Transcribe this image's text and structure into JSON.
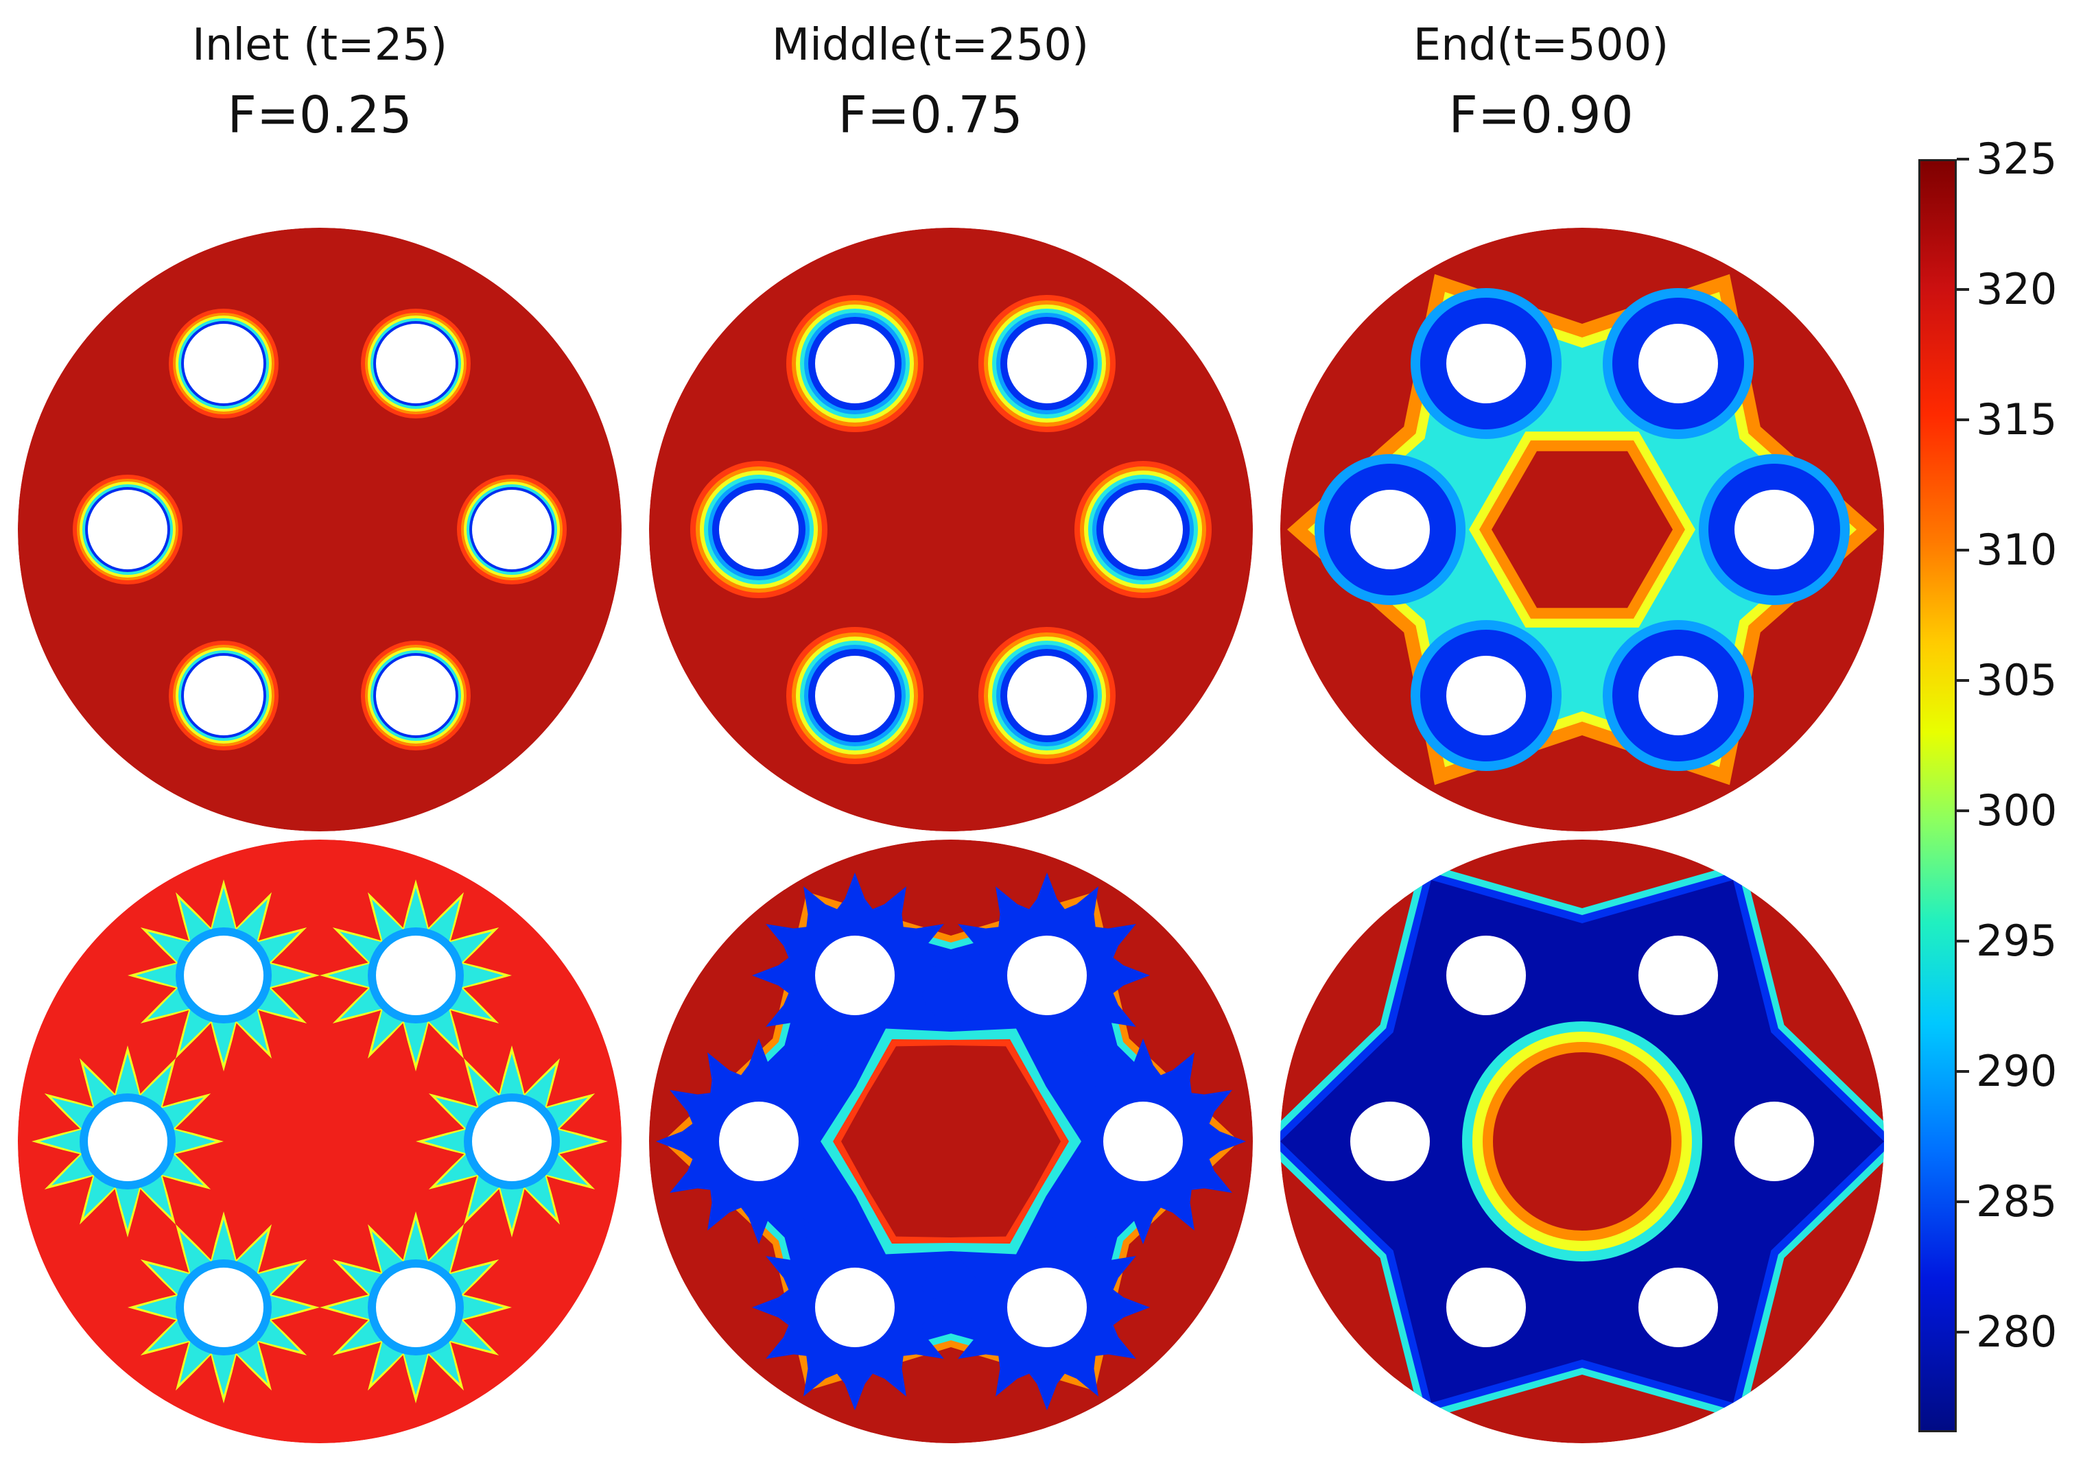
{
  "columns": [
    {
      "title": "Inlet (t=25)",
      "fraction": "F=0.25"
    },
    {
      "title": "Middle(t=250)",
      "fraction": "F=0.75"
    },
    {
      "title": "End(t=500)",
      "fraction": "F=0.90"
    }
  ],
  "colorbar": {
    "labels": [
      "325",
      "320",
      "315",
      "310",
      "305",
      "300",
      "295",
      "290",
      "285",
      "280"
    ],
    "max_color": "#7f0000",
    "min_color": "#000b85"
  },
  "colors": {
    "hot": "#b81610",
    "hot_bright": "#f0201a",
    "warm": "#ff3a10",
    "orange": "#ff8c00",
    "yellow": "#f2ff20",
    "cyan": "#28e8e0",
    "light_blue": "#0aa0ff",
    "blue": "#0030f0",
    "dark_blue": "#000ca8",
    "tube": "#ffffff"
  }
}
